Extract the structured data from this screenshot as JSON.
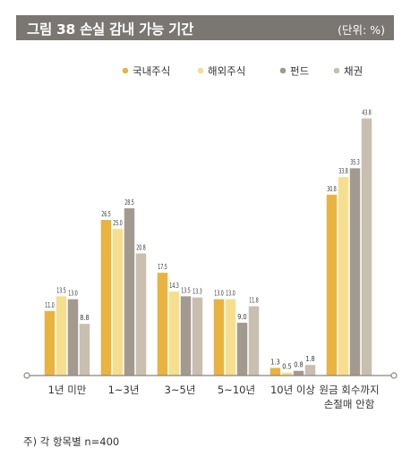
{
  "header": {
    "title": "그림 38  손실 감내 가능 기간",
    "unit": "(단위: %)"
  },
  "footnote": "주) 각 항목별 n=400",
  "colors": {
    "header_bg": "#7a7672",
    "series": [
      "#e8b43f",
      "#f5df8e",
      "#a39a8f",
      "#c9bfb1"
    ],
    "axis": "#8a8580"
  },
  "chart_data": {
    "type": "bar",
    "title": "손실 감내 가능 기간",
    "unit": "%",
    "categories": [
      "1년 미만",
      "1~3년",
      "3~5년",
      "5~10년",
      "10년 이상",
      "원금 회수까지 손절매 안함"
    ],
    "series": [
      {
        "name": "국내주식",
        "values": [
          11.0,
          26.5,
          17.5,
          13.0,
          1.3,
          30.8
        ]
      },
      {
        "name": "해외주식",
        "values": [
          13.5,
          25.0,
          14.3,
          13.0,
          0.5,
          33.8
        ]
      },
      {
        "name": "펀드",
        "values": [
          13.0,
          28.5,
          13.5,
          9.0,
          0.8,
          35.3
        ]
      },
      {
        "name": "채권",
        "values": [
          8.8,
          20.8,
          13.3,
          11.8,
          1.8,
          43.8
        ]
      }
    ],
    "data_labels": [
      [
        "11.0",
        "26.5",
        "17.5",
        "13.0",
        "1.3",
        "30.8"
      ],
      [
        "13.5",
        "25.0",
        "14.3",
        "13.0",
        "0.5",
        "33.8"
      ],
      [
        "13.0",
        "28.5",
        "13.5",
        "9.0",
        "0.8",
        "35.3"
      ],
      [
        "8.8",
        "20.8",
        "13.3",
        "11.8",
        "1.8",
        "43.8"
      ]
    ],
    "category_lines": [
      [
        "1년 미만"
      ],
      [
        "1~3년"
      ],
      [
        "3~5년"
      ],
      [
        "5~10년"
      ],
      [
        "10년 이상"
      ],
      [
        "원금 회수까지",
        "손절매 안함"
      ]
    ],
    "ylim": [
      0,
      46
    ],
    "grid": false,
    "legend_position": "top-right"
  }
}
